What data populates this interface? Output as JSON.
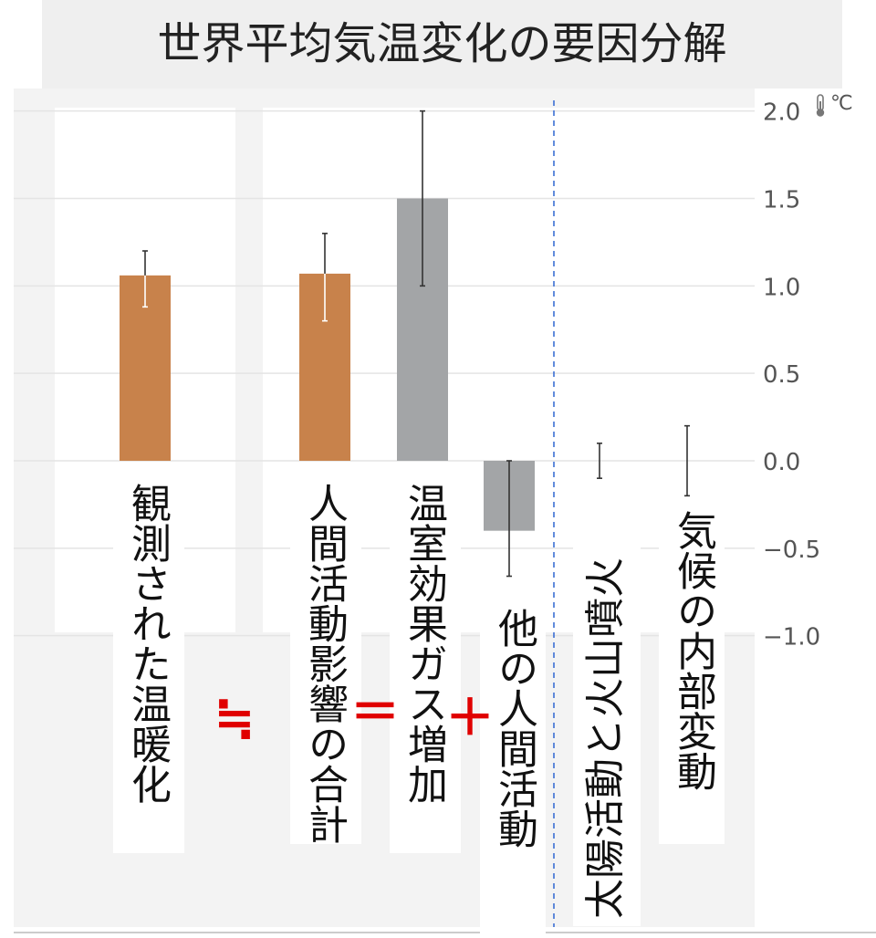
{
  "title": "世界平均気温変化の要因分解",
  "unit": "℃",
  "icons": {
    "unit_icon": "thermometer-icon"
  },
  "colors": {
    "observed": "#c8824b",
    "component": "#a3a5a7",
    "grid": "#e4e4e4",
    "axis_text": "#555555",
    "divider": "#3b6fd4",
    "operator": "#e00000"
  },
  "operators": {
    "approx": "≒",
    "equals": "＝",
    "plus": "＋"
  },
  "chart_data": {
    "type": "bar",
    "title": "世界平均気温変化の要因分解",
    "ylabel": "℃",
    "ylim": [
      -1.0,
      2.0
    ],
    "yticks": [
      "2.0",
      "1.5",
      "1.0",
      "0.5",
      "0.0",
      "−0.5",
      "−1.0"
    ],
    "yticks_values": [
      2.0,
      1.5,
      1.0,
      0.5,
      0.0,
      -0.5,
      -1.0
    ],
    "grid": true,
    "categories": [
      "観測された温暖化",
      "人間活動影響の合計",
      "温室効果ガス増加",
      "他の人間活動",
      "太陽活動と火山噴火",
      "気候の内部変動"
    ],
    "values": [
      1.06,
      1.07,
      1.5,
      -0.4,
      0.0,
      0.0
    ],
    "error_low": [
      0.88,
      0.8,
      1.0,
      -0.66,
      -0.1,
      -0.2
    ],
    "error_high": [
      1.2,
      1.3,
      2.0,
      0.0,
      0.1,
      0.2
    ],
    "bar_colors": [
      "#c8824b",
      "#c8824b",
      "#a3a5a7",
      "#a3a5a7",
      null,
      null
    ]
  }
}
